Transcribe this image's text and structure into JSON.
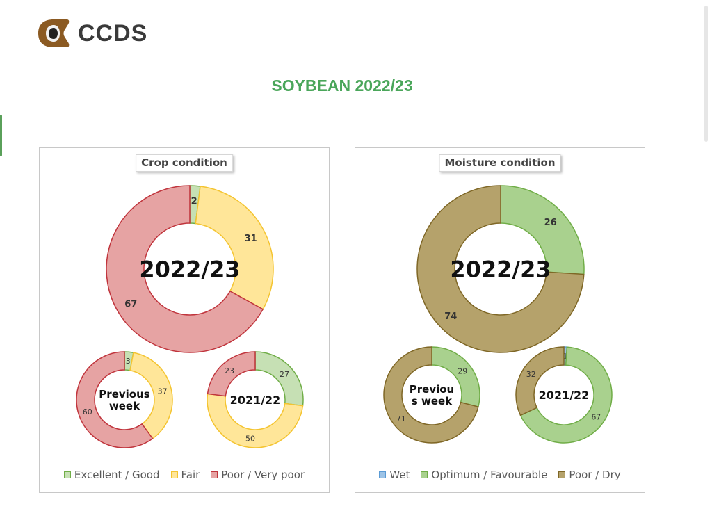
{
  "header": {
    "logo_text": "CCDS",
    "title": "SOYBEAN 2022/23"
  },
  "colors": {
    "excellent_fill": "#c6e0b4",
    "excellent_stroke": "#70ad47",
    "fair_fill": "#ffe699",
    "fair_stroke": "#f4c430",
    "poor_fill": "#e6a3a3",
    "poor_stroke": "#c0343c",
    "wet_fill": "#9dc3e6",
    "wet_stroke": "#5b9bd5",
    "optimum_fill": "#a9d18e",
    "optimum_stroke": "#70ad47",
    "dry_fill": "#b5a26b",
    "dry_stroke": "#7f6726"
  },
  "chart_data": [
    {
      "type": "pie",
      "title": "Crop condition",
      "legend": [
        "Excellent / Good",
        "Fair",
        "Poor / Very poor"
      ],
      "donuts": [
        {
          "name": "2022/23",
          "values": [
            2,
            31,
            67
          ]
        },
        {
          "name": "Previous week",
          "values": [
            3,
            37,
            60
          ]
        },
        {
          "name": "2021/22",
          "values": [
            27,
            50,
            23
          ]
        }
      ]
    },
    {
      "type": "pie",
      "title": "Moisture condition",
      "legend": [
        "Wet",
        "Optimum / Favourable",
        "Poor / Dry"
      ],
      "donuts": [
        {
          "name": "2022/23",
          "values": [
            0,
            26,
            74
          ]
        },
        {
          "name": "Previous week",
          "center_lines": [
            "Previou",
            "s week"
          ],
          "values": [
            0,
            29,
            71
          ]
        },
        {
          "name": "2021/22",
          "values": [
            1,
            67,
            32
          ]
        }
      ]
    }
  ]
}
